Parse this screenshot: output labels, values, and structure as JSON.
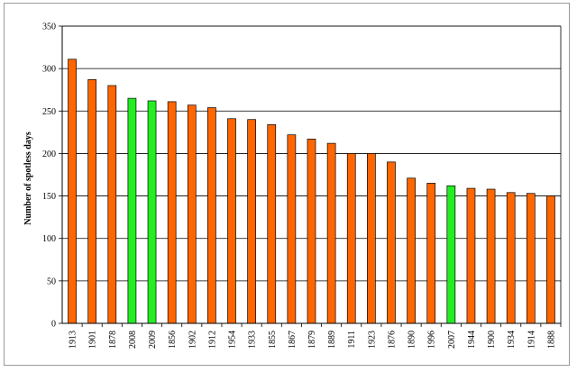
{
  "chart_data": {
    "type": "bar",
    "title": "",
    "xlabel": "",
    "ylabel": "Number of spotless days",
    "ylim": [
      0,
      350
    ],
    "yticks": [
      0,
      50,
      100,
      150,
      200,
      250,
      300,
      350
    ],
    "grid": true,
    "legend": "none",
    "colors": {
      "default": "#ff6600",
      "highlight": "#22ee22",
      "edge": "#000000"
    },
    "categories": [
      "1913",
      "1901",
      "1878",
      "2008",
      "2009",
      "1856",
      "1902",
      "1912",
      "1954",
      "1933",
      "1855",
      "1867",
      "1879",
      "1889",
      "1911",
      "1923",
      "1876",
      "1890",
      "1996",
      "2007",
      "1944",
      "1900",
      "1934",
      "1914",
      "1888"
    ],
    "values": [
      311,
      287,
      280,
      265,
      262,
      261,
      257,
      254,
      241,
      240,
      234,
      222,
      217,
      212,
      200,
      200,
      190,
      171,
      165,
      162,
      159,
      158,
      154,
      153,
      150
    ],
    "highlight": [
      false,
      false,
      false,
      true,
      true,
      false,
      false,
      false,
      false,
      false,
      false,
      false,
      false,
      false,
      false,
      false,
      false,
      false,
      false,
      true,
      false,
      false,
      false,
      false,
      false
    ]
  }
}
